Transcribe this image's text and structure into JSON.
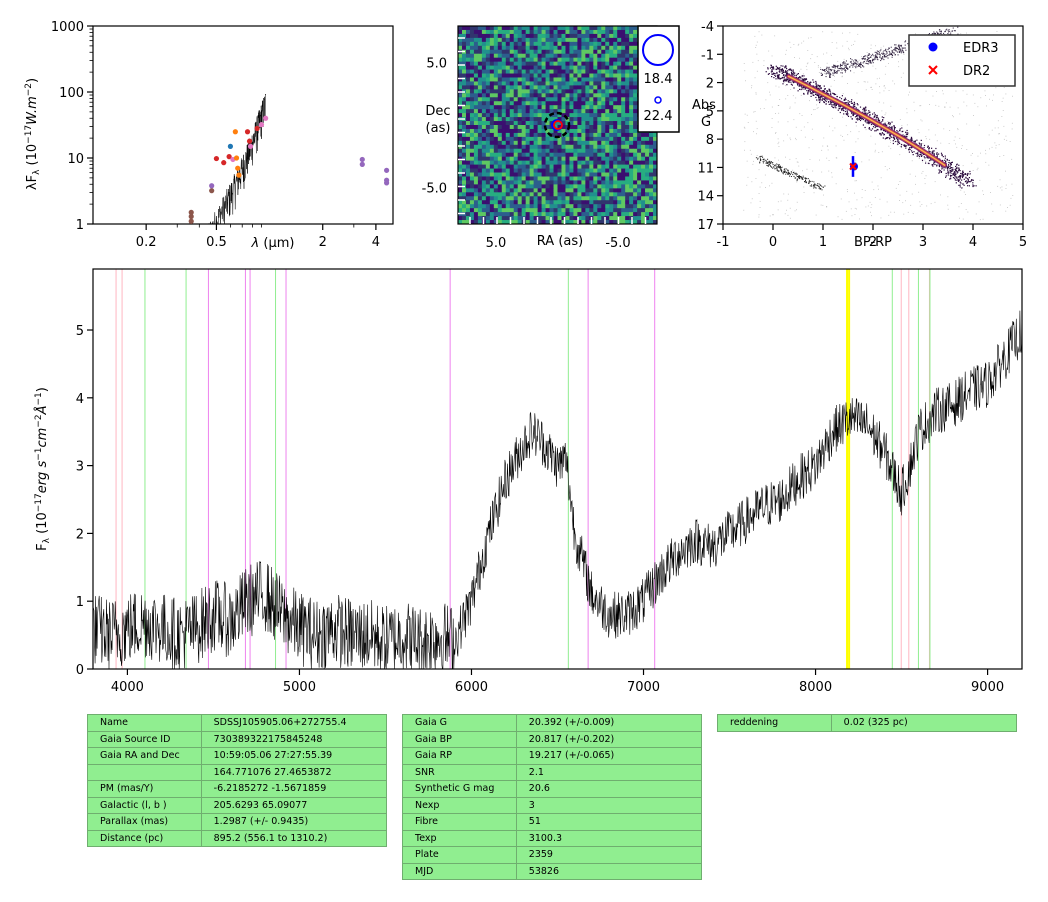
{
  "sed": {
    "ylabel": "λF_λ (10^-17 W.m^-2)",
    "xlabel": "λ (μm)",
    "yticks": [
      "1",
      "10",
      "100",
      "1000"
    ],
    "xticks": [
      "0.2",
      "0.5",
      "2",
      "4"
    ],
    "xlim": [
      0.1,
      5
    ],
    "ylim": [
      1,
      1000
    ],
    "scale": "log-log",
    "points": [
      {
        "x": 0.36,
        "y": 1.5,
        "color": "#8c564b"
      },
      {
        "x": 0.36,
        "y": 1.3,
        "color": "#8c564b"
      },
      {
        "x": 0.36,
        "y": 1.1,
        "color": "#8c564b"
      },
      {
        "x": 0.47,
        "y": 3.2,
        "color": "#8c564b"
      },
      {
        "x": 0.47,
        "y": 3.8,
        "color": "#9467bd"
      },
      {
        "x": 0.5,
        "y": 9.8,
        "color": "#d62728"
      },
      {
        "x": 0.55,
        "y": 8.5,
        "color": "#d62728"
      },
      {
        "x": 0.59,
        "y": 10.5,
        "color": "#d62728"
      },
      {
        "x": 0.6,
        "y": 15,
        "color": "#1f77b4"
      },
      {
        "x": 0.62,
        "y": 9.5,
        "color": "#e377c2"
      },
      {
        "x": 0.64,
        "y": 25,
        "color": "#ff7f0e"
      },
      {
        "x": 0.65,
        "y": 10,
        "color": "#ff7f0e"
      },
      {
        "x": 0.66,
        "y": 7,
        "color": "#ff7f0e"
      },
      {
        "x": 0.67,
        "y": 5.5,
        "color": "#ff7f0e"
      },
      {
        "x": 0.75,
        "y": 25,
        "color": "#d62728"
      },
      {
        "x": 0.77,
        "y": 18,
        "color": "#d62728"
      },
      {
        "x": 0.78,
        "y": 15,
        "color": "#e377c2"
      },
      {
        "x": 0.85,
        "y": 28,
        "color": "#d62728"
      },
      {
        "x": 0.9,
        "y": 32,
        "color": "#e377c2"
      },
      {
        "x": 0.95,
        "y": 40,
        "color": "#e377c2"
      },
      {
        "x": 3.35,
        "y": 9.5,
        "color": "#9467bd"
      },
      {
        "x": 3.35,
        "y": 8.0,
        "color": "#9467bd"
      },
      {
        "x": 4.6,
        "y": 6.5,
        "color": "#9467bd"
      },
      {
        "x": 4.6,
        "y": 4.6,
        "color": "#9467bd"
      },
      {
        "x": 4.6,
        "y": 4.2,
        "color": "#9467bd"
      }
    ]
  },
  "image": {
    "ylabel_line1": "Dec",
    "ylabel_line2": "(as)",
    "xlabel": "RA (as)",
    "xticks": [
      "5.0",
      "-5.0"
    ],
    "yticks": [
      "5.0",
      "-5.0"
    ],
    "legend": [
      "18.4",
      "22.4"
    ],
    "colors": {
      "low": "#3b0f70",
      "mid": "#21908d",
      "high": "#5ec962"
    }
  },
  "cmd": {
    "xlabel": "BP-RP",
    "ylabel_line1": "Abs",
    "ylabel_line2": "G",
    "xticks": [
      "-1",
      "0",
      "1",
      "2",
      "3",
      "4",
      "5"
    ],
    "yticks": [
      "-4",
      "-1",
      "2",
      "5",
      "8",
      "11",
      "14",
      "17"
    ],
    "xlim": [
      -1,
      5
    ],
    "ylim": [
      17,
      -4
    ],
    "legend": [
      {
        "label": "EDR3",
        "color": "#0000ff",
        "marker": "dot"
      },
      {
        "label": "DR2",
        "color": "#ff0000",
        "marker": "x"
      }
    ],
    "star": {
      "x": 1.6,
      "y": 10.9,
      "yerr": 1.1
    }
  },
  "chart_data": {
    "type": "line",
    "ylabel": "F_λ (10^-17 erg s^-1 cm^-2 Å^-1)",
    "xlabel": "",
    "xlim": [
      3800,
      9200
    ],
    "ylim": [
      0,
      5.9
    ],
    "xticks": [
      "4000",
      "5000",
      "6000",
      "7000",
      "8000",
      "9000"
    ],
    "yticks": [
      "0",
      "1",
      "2",
      "3",
      "4",
      "5"
    ],
    "series": [
      {
        "color": "#000000",
        "x": [
          3800,
          3900,
          4000,
          4100,
          4200,
          4300,
          4400,
          4500,
          4600,
          4700,
          4800,
          4900,
          5000,
          5100,
          5200,
          5300,
          5400,
          5500,
          5600,
          5700,
          5800,
          5900,
          5950,
          6000,
          6100,
          6200,
          6300,
          6350,
          6400,
          6450,
          6500,
          6550,
          6600,
          6700,
          6800,
          6900,
          7000,
          7100,
          7200,
          7300,
          7400,
          7500,
          7600,
          7700,
          7800,
          7900,
          8000,
          8100,
          8200,
          8300,
          8400,
          8450,
          8500,
          8550,
          8600,
          8700,
          8800,
          8900,
          9000,
          9100,
          9200
        ],
        "y": [
          0.6,
          0.5,
          0.6,
          0.7,
          0.6,
          0.5,
          0.6,
          0.8,
          0.7,
          1.0,
          1.1,
          0.8,
          0.6,
          0.5,
          0.6,
          0.5,
          0.5,
          0.4,
          0.5,
          0.4,
          0.5,
          0.4,
          0.7,
          1.0,
          2.0,
          2.8,
          3.3,
          3.5,
          3.4,
          3.2,
          3.0,
          3.1,
          2.0,
          1.1,
          0.8,
          0.8,
          1.0,
          1.4,
          1.7,
          1.9,
          1.8,
          2.0,
          2.2,
          2.4,
          2.5,
          2.8,
          3.0,
          3.5,
          3.7,
          3.6,
          3.2,
          2.9,
          2.6,
          3.0,
          3.5,
          3.8,
          3.9,
          4.1,
          4.2,
          4.6,
          5.0
        ]
      }
    ],
    "lines": [
      {
        "x": 3934,
        "color": "#ffb6c1"
      },
      {
        "x": 3969,
        "color": "#ffb6c1"
      },
      {
        "x": 4102,
        "color": "#90ee90"
      },
      {
        "x": 4341,
        "color": "#90ee90"
      },
      {
        "x": 4471,
        "color": "#ee82ee"
      },
      {
        "x": 4686,
        "color": "#ee82ee"
      },
      {
        "x": 4713,
        "color": "#ee82ee"
      },
      {
        "x": 4861,
        "color": "#90ee90"
      },
      {
        "x": 4922,
        "color": "#ee82ee"
      },
      {
        "x": 5876,
        "color": "#ee82ee"
      },
      {
        "x": 6563,
        "color": "#90ee90"
      },
      {
        "x": 6678,
        "color": "#ee82ee"
      },
      {
        "x": 7065,
        "color": "#ee82ee"
      },
      {
        "x": 8183,
        "color": "#ffff00"
      },
      {
        "x": 8195,
        "color": "#ffff00"
      },
      {
        "x": 8446,
        "color": "#90ee90"
      },
      {
        "x": 8498,
        "color": "#ffb6c1"
      },
      {
        "x": 8542,
        "color": "#ffb6c1"
      },
      {
        "x": 8598,
        "color": "#90ee90"
      },
      {
        "x": 8662,
        "color": "#ffb6c1"
      },
      {
        "x": 8665,
        "color": "#90ee90"
      }
    ]
  },
  "tables": {
    "left": [
      [
        "Name",
        "SDSSJ105905.06+272755.4"
      ],
      [
        "Gaia Source ID",
        "730389322175845248"
      ],
      [
        "Gaia RA and Dec",
        "10:59:05.06    27:27:55.39"
      ],
      [
        "",
        "164.771076    27.4653872"
      ],
      [
        "PM (mas/Y)",
        "-6.2185272    -1.5671859"
      ],
      [
        "Galactic (l, b )",
        "205.6293    65.09077"
      ],
      [
        "Parallax (mas)",
        "1.2987 (+/- 0.9435)"
      ],
      [
        "Distance (pc)",
        "895.2 (556.1 to 1310.2)"
      ]
    ],
    "middle": [
      [
        "Gaia G",
        "20.392 (+/-0.009)"
      ],
      [
        "Gaia BP",
        "20.817 (+/-0.202)"
      ],
      [
        "Gaia RP",
        "19.217 (+/-0.065)"
      ],
      [
        "SNR",
        "2.1"
      ],
      [
        "Synthetic G mag",
        "20.6"
      ],
      [
        "Nexp",
        "3"
      ],
      [
        "Fibre",
        "51"
      ],
      [
        "Texp",
        "3100.3"
      ],
      [
        "Plate",
        "2359"
      ],
      [
        "MJD",
        "53826"
      ]
    ],
    "right": [
      [
        "reddening",
        "0.02 (325 pc)"
      ]
    ]
  }
}
